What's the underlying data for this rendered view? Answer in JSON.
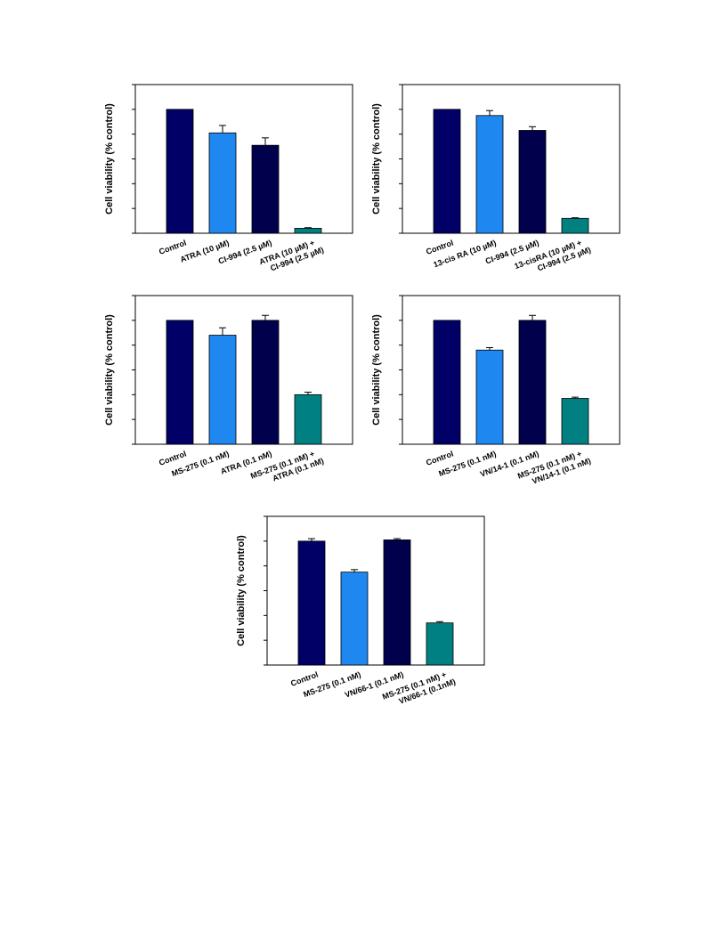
{
  "chart_data": [
    {
      "type": "bar",
      "ylabel": "Cell viability (% control)",
      "xlabel": "",
      "ylim": [
        0,
        120
      ],
      "categories": [
        [
          "Control"
        ],
        [
          "ATRA (10 µM)"
        ],
        [
          "CI-994 (2.5 µM)"
        ],
        [
          "ATRA (10 µM) +",
          "CI-994 (2.5 µM)"
        ]
      ],
      "values": [
        100,
        81,
        71,
        4
      ],
      "errors": [
        0,
        6,
        6,
        0.5
      ],
      "bar_colors": [
        "#000066",
        "#1e88f0",
        "#00004d",
        "#008080"
      ]
    },
    {
      "type": "bar",
      "ylabel": "Cell viability (% control)",
      "xlabel": "",
      "ylim": [
        0,
        120
      ],
      "categories": [
        [
          "Control"
        ],
        [
          "13-cis RA (10 µM)"
        ],
        [
          "CI-994 (2.5 µM)"
        ],
        [
          "13-cisRA (10 µM) +",
          "CI-994 (2.5 µM)"
        ]
      ],
      "values": [
        100,
        95,
        83,
        12
      ],
      "errors": [
        0,
        4,
        3,
        0.5
      ],
      "bar_colors": [
        "#000066",
        "#1e88f0",
        "#00004d",
        "#008080"
      ]
    },
    {
      "type": "bar",
      "ylabel": "Cell viability (% control)",
      "xlabel": "",
      "ylim": [
        0,
        120
      ],
      "categories": [
        [
          "Control"
        ],
        [
          "MS-275 (0.1 nM)"
        ],
        [
          "ATRA (0.1 nM)"
        ],
        [
          "MS-275 (0.1 nM) +",
          "ATRA (0.1 nM)"
        ]
      ],
      "values": [
        100,
        88,
        100,
        40
      ],
      "errors": [
        0,
        6,
        4,
        2
      ],
      "bar_colors": [
        "#000066",
        "#1e88f0",
        "#00004d",
        "#008080"
      ]
    },
    {
      "type": "bar",
      "ylabel": "Cell viability (% control)",
      "xlabel": "",
      "ylim": [
        0,
        120
      ],
      "categories": [
        [
          "Control"
        ],
        [
          "MS-275 (0.1 nM)"
        ],
        [
          "VN/14-1 (0.1 nM)"
        ],
        [
          "MS-275 (0.1 nM) +",
          "VN/14-1 (0.1 nM)"
        ]
      ],
      "values": [
        100,
        76,
        100,
        37
      ],
      "errors": [
        0,
        2,
        4,
        1
      ],
      "bar_colors": [
        "#000066",
        "#1e88f0",
        "#00004d",
        "#008080"
      ]
    },
    {
      "type": "bar",
      "ylabel": "Cell viability (% control)",
      "xlabel": "",
      "ylim": [
        0,
        120
      ],
      "categories": [
        [
          "Control"
        ],
        [
          "MS-275 (0.1 nM)"
        ],
        [
          "VN/66-1 (0.1 nM)"
        ],
        [
          "MS-275 (0.1 nM) +",
          "VN/66-1 (0.1nM)"
        ]
      ],
      "values": [
        100,
        75,
        101,
        34
      ],
      "errors": [
        2,
        2,
        1,
        1
      ],
      "bar_colors": [
        "#000066",
        "#1e88f0",
        "#00004d",
        "#008080"
      ]
    }
  ]
}
